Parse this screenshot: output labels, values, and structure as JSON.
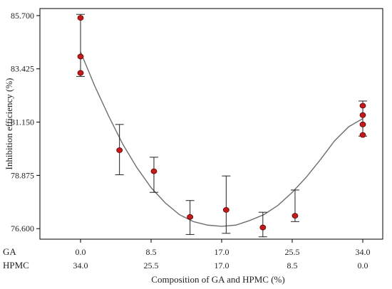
{
  "chart_data": {
    "type": "scatter",
    "xlabel": "Composition of GA and HPMC (%)",
    "ylabel": "Inhibition efficiency (%)",
    "xlim": [
      -0.08,
      1.08
    ],
    "ylim": [
      76.15,
      86.0
    ],
    "y_ticks": [
      76.6,
      78.875,
      81.15,
      83.425,
      85.7
    ],
    "y_tick_labels": [
      "76.600",
      "78.875",
      "81.150",
      "83.425",
      "85.700"
    ],
    "ga_row_label": "GA",
    "hpmc_row_label": "HPMC",
    "x_tick_positions": [
      0.0,
      0.25,
      0.5,
      0.75,
      1.0
    ],
    "ga_tick_labels": [
      "0.0",
      "8.5",
      "17.0",
      "25.5",
      "34.0"
    ],
    "hpmc_tick_labels": [
      "34.0",
      "25.5",
      "17.0",
      "8.5",
      "0.0"
    ],
    "points": [
      {
        "x": 0.0,
        "y": 85.6
      },
      {
        "x": 0.0,
        "y": 83.95
      },
      {
        "x": 0.0,
        "y": 83.25
      },
      {
        "x": 0.138,
        "y": 79.95
      },
      {
        "x": 0.26,
        "y": 79.05
      },
      {
        "x": 0.388,
        "y": 77.1
      },
      {
        "x": 0.516,
        "y": 77.4
      },
      {
        "x": 0.646,
        "y": 76.65
      },
      {
        "x": 0.76,
        "y": 77.15
      },
      {
        "x": 1.0,
        "y": 81.85
      },
      {
        "x": 1.0,
        "y": 81.45
      },
      {
        "x": 1.0,
        "y": 81.05
      },
      {
        "x": 1.0,
        "y": 80.6
      }
    ],
    "error_bars": [
      {
        "x": 0.0,
        "low": 83.1,
        "high": 85.75
      },
      {
        "x": 0.138,
        "low": 78.9,
        "high": 81.05
      },
      {
        "x": 0.26,
        "low": 78.15,
        "high": 79.65
      },
      {
        "x": 0.388,
        "low": 76.35,
        "high": 77.8
      },
      {
        "x": 0.516,
        "low": 76.4,
        "high": 78.85
      },
      {
        "x": 0.646,
        "low": 76.25,
        "high": 77.3
      },
      {
        "x": 0.76,
        "low": 76.9,
        "high": 78.25
      },
      {
        "x": 1.0,
        "low": 80.55,
        "high": 82.05
      }
    ],
    "fit_curve": {
      "x": [
        0.0,
        0.05,
        0.1,
        0.15,
        0.2,
        0.25,
        0.3,
        0.35,
        0.4,
        0.45,
        0.5,
        0.55,
        0.6,
        0.65,
        0.7,
        0.75,
        0.8,
        0.85,
        0.9,
        0.95,
        1.0
      ],
      "y": [
        84.15,
        82.7,
        81.4,
        80.2,
        79.2,
        78.35,
        77.7,
        77.2,
        76.9,
        76.75,
        76.7,
        76.75,
        76.95,
        77.2,
        77.6,
        78.15,
        78.8,
        79.55,
        80.35,
        80.95,
        81.3
      ]
    },
    "colors": {
      "marker_fill": "#c41a1a",
      "marker_edge": "#5a0000",
      "curve": "#6e6e6e",
      "frame": "#000000",
      "error_bar": "#222222"
    }
  }
}
